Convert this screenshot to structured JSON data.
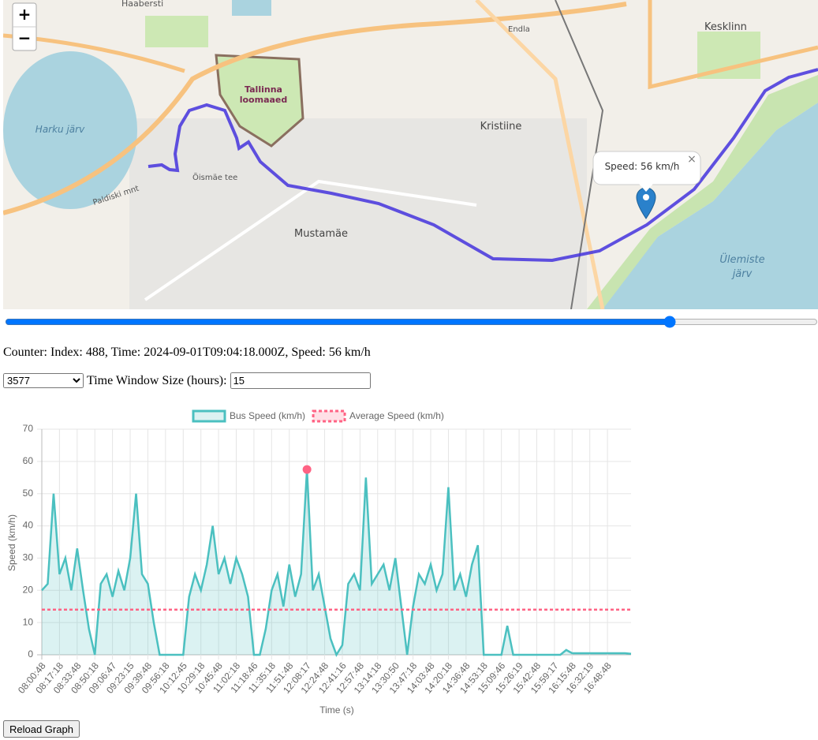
{
  "map": {
    "zoom_in": "+",
    "zoom_out": "−",
    "popup": "Speed: 56 km/h",
    "close": "×",
    "places": [
      "Harku järv",
      "Tallinna",
      "loomaaed",
      "Kristiine",
      "Mustamäe",
      "Kesklinn",
      "Ülemiste",
      "järv",
      "Paldiski mnt",
      "Endla",
      "Õismäe tee",
      "Haabersti"
    ]
  },
  "slider": {
    "value": 488,
    "max": 593
  },
  "counter": "Counter: Index: 488, Time: 2024-09-01T09:04:18.000Z, Speed: 56 km/h",
  "controls": {
    "select": "3577",
    "window_label": "Time Window Size (hours):",
    "window_value": "15",
    "reload": "Reload Graph"
  },
  "chart_data": {
    "type": "line",
    "x_label": "Time (s)",
    "y_label": "Speed (km/h)",
    "categories": [
      "08:00:48",
      null,
      null,
      "08:17:18",
      null,
      null,
      "08:33:48",
      null,
      null,
      "08:50:18",
      null,
      null,
      "09:06:47",
      null,
      null,
      "09:23:15",
      null,
      null,
      "09:39:48",
      null,
      null,
      "09:56:18",
      null,
      null,
      "10:12:45",
      null,
      null,
      "10:29:18",
      null,
      null,
      "10:45:48",
      null,
      null,
      "11:02:18",
      null,
      null,
      "11:18:46",
      null,
      null,
      "11:35:18",
      null,
      null,
      "11:51:48",
      null,
      null,
      "12:08:17",
      null,
      null,
      "12:24:48",
      null,
      null,
      "12:41:16",
      null,
      null,
      "12:57:48",
      null,
      null,
      "13:14:18",
      null,
      null,
      "13:30:50",
      null,
      null,
      "13:47:18",
      null,
      null,
      "14:03:48",
      null,
      null,
      "14:20:18",
      null,
      null,
      "14:36:48",
      null,
      null,
      "14:53:18",
      null,
      null,
      "15:09:46",
      null,
      null,
      "15:26:19",
      null,
      null,
      "15:42:48",
      null,
      null,
      "15:59:17",
      null,
      null,
      "16:15:48",
      null,
      null,
      "16:32:19",
      null,
      null,
      "16:48:48",
      null,
      null,
      null,
      null
    ],
    "series": [
      {
        "name": "Bus Speed (km/h)",
        "color": "#4bc0c0",
        "fill": "rgba(75,192,192,0.2)",
        "values": [
          20,
          22,
          50,
          25,
          30,
          20,
          33,
          20,
          8,
          0,
          22,
          25,
          18,
          26,
          20,
          30,
          50,
          25,
          22,
          10,
          0,
          0,
          0,
          0,
          0,
          18,
          25,
          20,
          28,
          40,
          25,
          30,
          22,
          30,
          25,
          18,
          0,
          0,
          8,
          20,
          25,
          15,
          28,
          18,
          25,
          57.5,
          20,
          25,
          15,
          5,
          0,
          3,
          22,
          25,
          20,
          55,
          22,
          25,
          28,
          20,
          30,
          15,
          0,
          15,
          25,
          22,
          28,
          20,
          25,
          52,
          20,
          25,
          18,
          28,
          34,
          0,
          0,
          0,
          0,
          9,
          0,
          0,
          0,
          0,
          0,
          0,
          0,
          0,
          0,
          1.5,
          0.5,
          0.5,
          0.5,
          0.5,
          0.5,
          0.5,
          0.5,
          0.5,
          0.5,
          0.5,
          0.3
        ]
      },
      {
        "name": "Average Speed (km/h)",
        "color": "#ff6384",
        "dashed": true,
        "values": [
          14,
          14,
          14,
          14,
          14,
          14,
          14,
          14,
          14,
          14,
          14,
          14,
          14,
          14,
          14,
          14,
          14,
          14,
          14,
          14,
          14,
          14,
          14,
          14,
          14,
          14,
          14,
          14,
          14,
          14,
          14,
          14,
          14,
          14,
          14,
          14,
          14,
          14,
          14,
          14,
          14,
          14,
          14,
          14,
          14,
          14,
          14,
          14,
          14,
          14,
          14,
          14,
          14,
          14,
          14,
          14,
          14,
          14,
          14,
          14,
          14,
          14,
          14,
          14,
          14,
          14,
          14,
          14,
          14,
          14,
          14,
          14,
          14,
          14,
          14,
          14,
          14,
          14,
          14,
          14,
          14,
          14,
          14,
          14,
          14,
          14,
          14,
          14,
          14,
          14,
          14,
          14,
          14,
          14,
          14,
          14,
          14,
          14,
          14,
          14,
          14
        ]
      }
    ],
    "highlight_index": 45,
    "ylim": [
      0,
      70
    ],
    "yticks": [
      0,
      10,
      20,
      30,
      40,
      50,
      60,
      70
    ],
    "grid": true
  }
}
